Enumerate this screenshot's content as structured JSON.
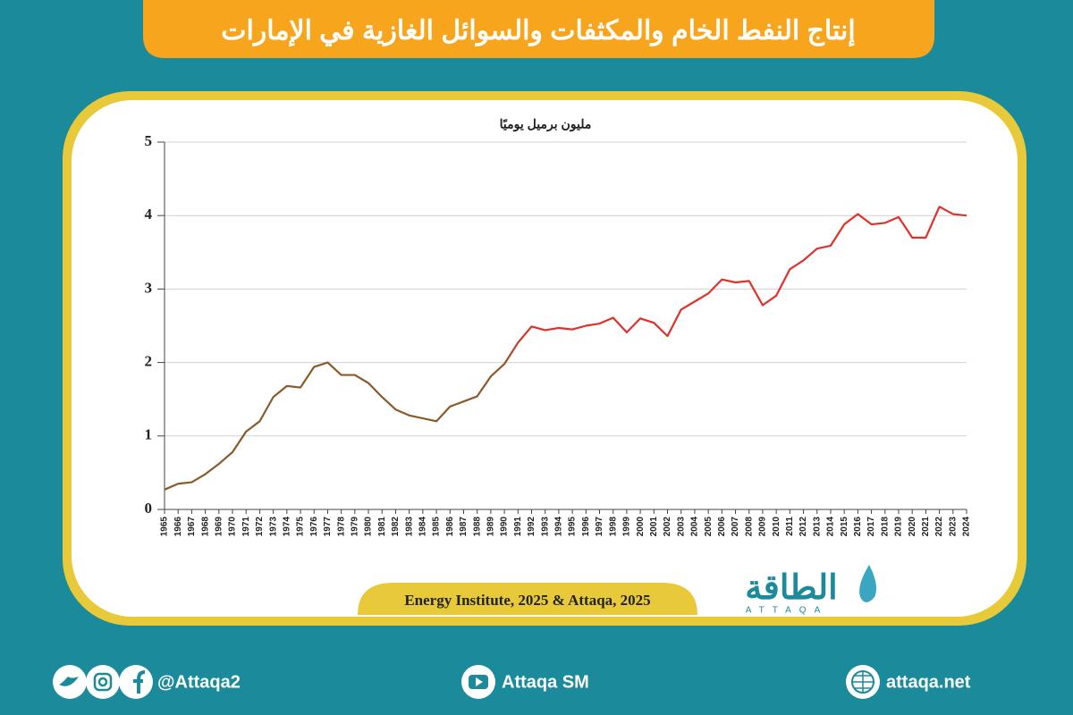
{
  "header": {
    "title": "إنتاج النفط الخام والمكثفات والسوائل الغازية في الإمارات"
  },
  "chart_data": {
    "type": "line",
    "ylabel": "مليون برميل يوميًا",
    "categories": [
      "1965",
      "1966",
      "1967",
      "1968",
      "1969",
      "1970",
      "1971",
      "1972",
      "1973",
      "1974",
      "1975",
      "1976",
      "1977",
      "1978",
      "1979",
      "1980",
      "1981",
      "1982",
      "1983",
      "1984",
      "1985",
      "1986",
      "1987",
      "1988",
      "1989",
      "1990",
      "1991",
      "1992",
      "1993",
      "1994",
      "1995",
      "1996",
      "1997",
      "1998",
      "1999",
      "2000",
      "2001",
      "2002",
      "2003",
      "2004",
      "2005",
      "2006",
      "2007",
      "2008",
      "2009",
      "2010",
      "2011",
      "2012",
      "2013",
      "2014",
      "2015",
      "2016",
      "2017",
      "2018",
      "2019",
      "2020",
      "2021",
      "2022",
      "2023",
      "2024"
    ],
    "series": [
      {
        "colors": [
          "#8b5a2b",
          "#e0302a"
        ],
        "values": [
          0.27,
          0.35,
          0.37,
          0.48,
          0.62,
          0.78,
          1.06,
          1.2,
          1.53,
          1.68,
          1.66,
          1.94,
          2.0,
          1.83,
          1.83,
          1.72,
          1.53,
          1.36,
          1.28,
          1.24,
          1.2,
          1.4,
          1.47,
          1.54,
          1.81,
          1.98,
          2.27,
          2.49,
          2.44,
          2.47,
          2.45,
          2.5,
          2.53,
          2.61,
          2.41,
          2.6,
          2.54,
          2.36,
          2.72,
          2.83,
          2.94,
          3.13,
          3.09,
          3.11,
          2.78,
          2.91,
          3.27,
          3.39,
          3.55,
          3.59,
          3.88,
          4.02,
          3.88,
          3.9,
          3.98,
          3.7,
          3.7,
          4.12,
          4.02,
          4.0
        ]
      }
    ],
    "ylim": [
      0,
      5
    ],
    "yticks": [
      0,
      1,
      2,
      3,
      4,
      5
    ],
    "grid": true,
    "source": "Energy Institute, 2025 & Attaqa, 2025"
  },
  "logo": {
    "name": "الطاقة",
    "latin": "ATTAQA"
  },
  "footer": {
    "social": "@Attaqa2",
    "youtube": "Attaqa SM",
    "web": "attaqa.net"
  }
}
